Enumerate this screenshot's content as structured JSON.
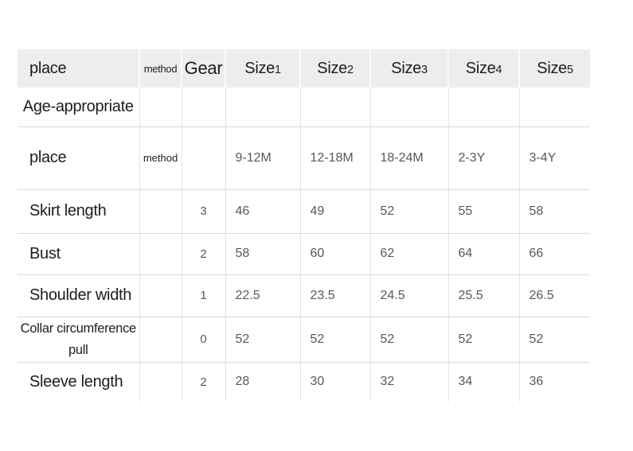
{
  "colors": {
    "page_bg": "#ffffff",
    "header_bg": "#ededef",
    "header_divider": "#fafafa",
    "row_divider": "#d9d9db",
    "column_divider": "#e4e4e6",
    "label_text": "#1d1d1f",
    "value_text": "#57585c"
  },
  "chart_data": {
    "type": "table",
    "title": "",
    "columns": [
      "place",
      "method",
      "Gear",
      "Size1",
      "Size2",
      "Size3",
      "Size4",
      "Size5"
    ],
    "rows": [
      {
        "label": "Age-appropriate",
        "method": "",
        "gear": "",
        "sizes": [
          "",
          "",
          "",
          "",
          ""
        ]
      },
      {
        "label": "place",
        "method": "method",
        "gear": "",
        "sizes": [
          "9-12M",
          "12-18M",
          "18-24M",
          "2-3Y",
          "3-4Y"
        ]
      },
      {
        "label": "Skirt length",
        "method": "",
        "gear": "3",
        "sizes": [
          "46",
          "49",
          "52",
          "55",
          "58"
        ]
      },
      {
        "label": "Bust",
        "method": "",
        "gear": "2",
        "sizes": [
          "58",
          "60",
          "62",
          "64",
          "66"
        ]
      },
      {
        "label": "Shoulder width",
        "method": "",
        "gear": "1",
        "sizes": [
          "22.5",
          "23.5",
          "24.5",
          "25.5",
          "26.5"
        ]
      },
      {
        "label": "Collar circumference pull",
        "method": "",
        "gear": "0",
        "sizes": [
          "52",
          "52",
          "52",
          "52",
          "52"
        ]
      },
      {
        "label": "Sleeve length",
        "method": "",
        "gear": "2",
        "sizes": [
          "28",
          "30",
          "32",
          "34",
          "36"
        ]
      }
    ]
  }
}
